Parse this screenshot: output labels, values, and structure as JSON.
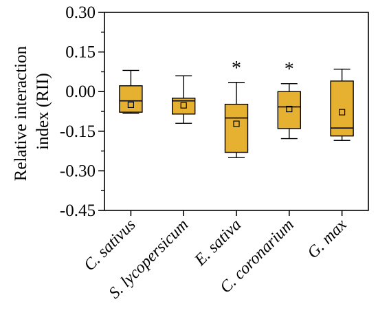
{
  "chart_data": {
    "type": "box",
    "ylabel_line1": "Relative interaction",
    "ylabel_line2": "index (RII)",
    "ylim": [
      -0.45,
      0.3
    ],
    "yticks": [
      0.3,
      0.15,
      0.0,
      -0.15,
      -0.3,
      -0.45
    ],
    "ytick_labels": [
      "0.30",
      "0.15",
      "0.00",
      "-0.15",
      "-0.30",
      "-0.45"
    ],
    "box_color": "#E6B030",
    "categories": [
      "C. sativus",
      "S. lycopersicum",
      "E. sativa",
      "C. coronarium",
      "G. max"
    ],
    "boxes": [
      {
        "whisker_low": -0.082,
        "q1": -0.078,
        "median": -0.035,
        "q3": 0.022,
        "whisker_high": 0.08,
        "mean": -0.05,
        "annotation": ""
      },
      {
        "whisker_low": -0.12,
        "q1": -0.085,
        "median": -0.035,
        "q3": -0.025,
        "whisker_high": 0.06,
        "mean": -0.052,
        "annotation": ""
      },
      {
        "whisker_low": -0.25,
        "q1": -0.23,
        "median": -0.1,
        "q3": -0.048,
        "whisker_high": 0.035,
        "mean": -0.122,
        "annotation": "*"
      },
      {
        "whisker_low": -0.178,
        "q1": -0.14,
        "median": -0.058,
        "q3": 0.0,
        "whisker_high": 0.03,
        "mean": -0.066,
        "annotation": "*"
      },
      {
        "whisker_low": -0.185,
        "q1": -0.168,
        "median": -0.138,
        "q3": 0.04,
        "whisker_high": 0.085,
        "mean": -0.078,
        "annotation": ""
      }
    ]
  }
}
